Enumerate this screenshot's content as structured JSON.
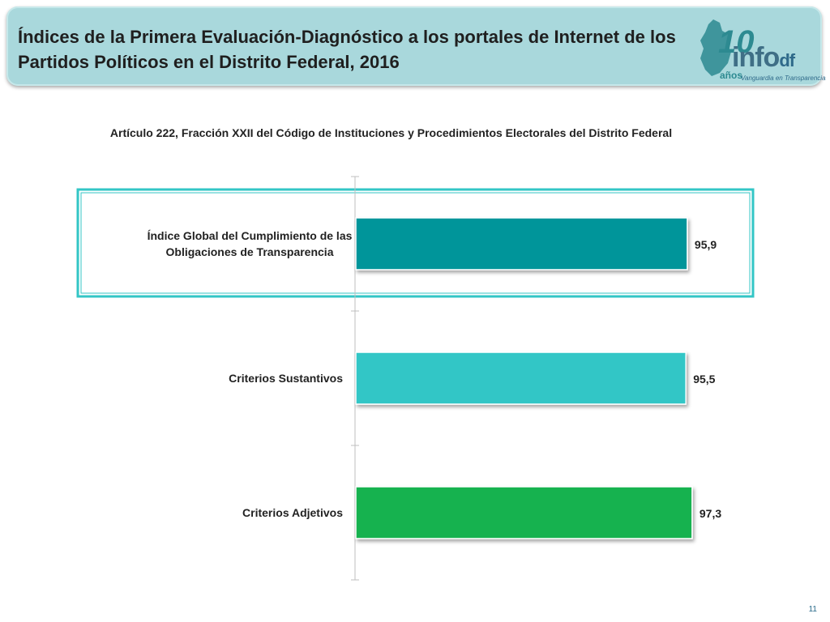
{
  "header": {
    "title_line1": "Índices de la Primera Evaluación-Diagnóstico a los portales de Internet de los",
    "title_line2": "Partidos Políticos en el Distrito Federal, 2016"
  },
  "logo": {
    "years": "10",
    "years_word": "años",
    "brand": "info",
    "brand_suffix": "df",
    "tagline": "Vanguardia en Transparencia"
  },
  "colors": {
    "bar1": "#00959a",
    "bar2": "#33c6c6",
    "bar3": "#19b24f",
    "highlight_border": "#33c6c6",
    "header_bg": "#a9d8dc"
  },
  "chart_data": {
    "type": "bar",
    "orientation": "horizontal",
    "title": "Artículo 222, Fracción XXII del Código de Instituciones y Procedimientos Electorales del Distrito Federal",
    "categories": [
      [
        "Índice Global del Cumplimiento de las",
        "Obligaciones de Transparencia"
      ],
      [
        "Criterios Sustantivos"
      ],
      [
        "Criterios Adjetivos"
      ]
    ],
    "values": [
      95.9,
      95.5,
      97.3
    ],
    "value_labels": [
      "95,9",
      "95,5",
      "97,3"
    ],
    "highlighted_index": 0,
    "xlim": [
      0,
      98.5
    ],
    "grid": false
  },
  "page_number": "11"
}
